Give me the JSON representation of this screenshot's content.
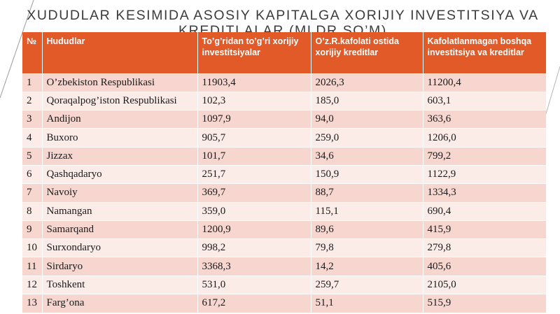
{
  "title": "XUDUDLAR KESIMIDA ASOSIY KAPITALGA XORIJIY INVESTITSIYA VA KREDITLALAR (MLDR.SO’M)",
  "table": {
    "headers": [
      "№",
      "Hududlar",
      "To’g’ridan to’g’ri xorijiy investitsiyalar",
      "O’z.R.kafolati ostida xorijiy kreditlar",
      "Kafolatlanmagan boshqa investitsiya va kreditlar"
    ],
    "rows": [
      [
        "1",
        "O’zbekiston Respublikasi",
        "11903,4",
        "2026,3",
        "11200,4"
      ],
      [
        "2",
        "Qoraqalpog’iston Respublikasi",
        "102,3",
        "185,0",
        "603,1"
      ],
      [
        "3",
        "Andijon",
        "1097,9",
        "94,0",
        "363,6"
      ],
      [
        "4",
        "Buxoro",
        "905,7",
        "259,0",
        "1206,0"
      ],
      [
        "5",
        "Jizzax",
        "101,7",
        "34,6",
        "799,2"
      ],
      [
        "6",
        "Qashqadaryo",
        "251,7",
        "150,9",
        "1122,9"
      ],
      [
        "7",
        "Navoiy",
        "369,7",
        "88,7",
        "1334,3"
      ],
      [
        "8",
        "Namangan",
        "359,0",
        "115,1",
        "690,4"
      ],
      [
        "9",
        "Samarqand",
        "1200,9",
        "89,6",
        "415,9"
      ],
      [
        "10",
        "Surxondaryo",
        "998,2",
        "79,8",
        "279,8"
      ],
      [
        "11",
        "Sirdaryo",
        "3368,3",
        "14,2",
        "405,6"
      ],
      [
        "12",
        "Toshkent",
        "531,0",
        "259,7",
        "2105,0"
      ],
      [
        "13",
        "Farg’ona",
        "617,2",
        "51,1",
        "515,9"
      ]
    ]
  }
}
